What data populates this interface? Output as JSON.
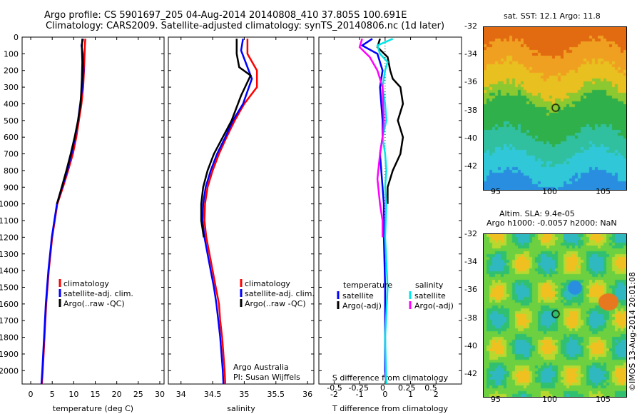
{
  "title": {
    "line1": "Argo profile: CS 5901697_205 04-Aug-2014 20140808_410 37.805S 100.691E",
    "line2": "Climatology: CARS2009. Satellite-adjusted climatology: synTS_20140806.nc (1d later)"
  },
  "colors": {
    "climatology": "#ff0000",
    "satellite": "#0000ff",
    "argo": "#000000",
    "sat_salinity": "#00e5e5",
    "argo_salinity": "#ff00ff"
  },
  "depth_axis": {
    "ticks": [
      0,
      100,
      200,
      300,
      400,
      500,
      600,
      700,
      800,
      900,
      1000,
      1100,
      1200,
      1300,
      1400,
      1500,
      1600,
      1700,
      1800,
      1900,
      2000
    ]
  },
  "chart_data": [
    {
      "type": "line",
      "xlabel": "temperature (deg C)",
      "ylabel": "",
      "xlim": [
        -2,
        31
      ],
      "ylim": [
        2080,
        0
      ],
      "xticks": [
        "0",
        "5",
        "10",
        "15",
        "20",
        "25",
        "30"
      ],
      "xtick_values": [
        0,
        5,
        10,
        15,
        20,
        25,
        30
      ],
      "legend": [
        "climatology",
        "satellite-adj. clim.",
        "Argo(..raw -QC)"
      ],
      "series": [
        {
          "name": "climatology",
          "color": "#ff0000",
          "points": [
            [
              12.7,
              10
            ],
            [
              12.6,
              50
            ],
            [
              12.5,
              120
            ],
            [
              12.4,
              200
            ],
            [
              12.2,
              300
            ],
            [
              11.8,
              400
            ],
            [
              11.2,
              500
            ],
            [
              10.6,
              600
            ],
            [
              9.8,
              700
            ],
            [
              8.7,
              800
            ],
            [
              7.5,
              900
            ],
            [
              6.2,
              1000
            ],
            [
              5.6,
              1100
            ],
            [
              5.0,
              1200
            ],
            [
              4.6,
              1300
            ],
            [
              4.2,
              1400
            ],
            [
              3.9,
              1500
            ],
            [
              3.6,
              1600
            ],
            [
              3.4,
              1700
            ],
            [
              3.2,
              1800
            ],
            [
              3.0,
              1900
            ],
            [
              2.8,
              2000
            ],
            [
              2.6,
              2080
            ]
          ]
        },
        {
          "name": "satellite-adj. clim.",
          "color": "#0000ff",
          "points": [
            [
              12.2,
              10
            ],
            [
              11.8,
              50
            ],
            [
              12.1,
              100
            ],
            [
              12.3,
              200
            ],
            [
              12.0,
              300
            ],
            [
              11.5,
              400
            ],
            [
              11.0,
              500
            ],
            [
              10.3,
              600
            ],
            [
              9.5,
              700
            ],
            [
              8.5,
              800
            ],
            [
              7.3,
              900
            ],
            [
              6.1,
              1000
            ],
            [
              5.5,
              1100
            ],
            [
              4.9,
              1200
            ],
            [
              4.5,
              1300
            ],
            [
              4.1,
              1400
            ],
            [
              3.8,
              1500
            ],
            [
              3.5,
              1600
            ],
            [
              3.3,
              1700
            ],
            [
              3.1,
              1800
            ],
            [
              2.9,
              1900
            ],
            [
              2.7,
              2000
            ],
            [
              2.5,
              2080
            ]
          ]
        },
        {
          "name": "Argo(..raw -QC)",
          "color": "#000000",
          "points": [
            [
              12.0,
              10
            ],
            [
              11.9,
              60
            ],
            [
              12.0,
              150
            ],
            [
              11.9,
              250
            ],
            [
              11.6,
              400
            ],
            [
              11.0,
              500
            ],
            [
              10.2,
              600
            ],
            [
              9.3,
              700
            ],
            [
              8.3,
              800
            ],
            [
              7.2,
              900
            ],
            [
              6.1,
              1000
            ]
          ]
        }
      ]
    },
    {
      "type": "line",
      "xlabel": "salinity",
      "ylabel": "",
      "xlim": [
        33.8,
        36.1
      ],
      "ylim": [
        2080,
        0
      ],
      "xticks": [
        "34",
        "34.5",
        "35",
        "35.5",
        "36"
      ],
      "xtick_values": [
        34,
        34.5,
        35,
        35.5,
        36
      ],
      "legend": [
        "climatology",
        "satellite-adj. clim.",
        "Argo(..raw -QC)"
      ],
      "annotation": [
        "Argo Australia",
        "PI: Susan Wijffels"
      ],
      "series": [
        {
          "name": "climatology",
          "color": "#ff0000",
          "points": [
            [
              35.05,
              10
            ],
            [
              35.05,
              100
            ],
            [
              35.2,
              200
            ],
            [
              35.2,
              300
            ],
            [
              35.0,
              400
            ],
            [
              34.85,
              500
            ],
            [
              34.72,
              600
            ],
            [
              34.6,
              700
            ],
            [
              34.5,
              800
            ],
            [
              34.42,
              900
            ],
            [
              34.38,
              1000
            ],
            [
              34.37,
              1100
            ],
            [
              34.4,
              1200
            ],
            [
              34.45,
              1300
            ],
            [
              34.5,
              1400
            ],
            [
              34.55,
              1500
            ],
            [
              34.6,
              1600
            ],
            [
              34.62,
              1700
            ],
            [
              34.65,
              1800
            ],
            [
              34.67,
              1900
            ],
            [
              34.69,
              2000
            ],
            [
              34.7,
              2080
            ]
          ]
        },
        {
          "name": "satellite-adj. clim.",
          "color": "#0000ff",
          "points": [
            [
              34.98,
              10
            ],
            [
              34.95,
              80
            ],
            [
              35.05,
              180
            ],
            [
              35.12,
              250
            ],
            [
              34.98,
              400
            ],
            [
              34.82,
              500
            ],
            [
              34.7,
              600
            ],
            [
              34.57,
              700
            ],
            [
              34.47,
              800
            ],
            [
              34.39,
              900
            ],
            [
              34.35,
              1000
            ],
            [
              34.34,
              1100
            ],
            [
              34.37,
              1200
            ],
            [
              34.42,
              1300
            ],
            [
              34.47,
              1400
            ],
            [
              34.52,
              1500
            ],
            [
              34.56,
              1600
            ],
            [
              34.59,
              1700
            ],
            [
              34.62,
              1800
            ],
            [
              34.64,
              1900
            ],
            [
              34.66,
              2000
            ],
            [
              34.67,
              2080
            ]
          ]
        },
        {
          "name": "Argo(..raw -QC)",
          "color": "#000000",
          "points": [
            [
              34.88,
              10
            ],
            [
              34.88,
              100
            ],
            [
              34.92,
              180
            ],
            [
              35.1,
              230
            ],
            [
              34.95,
              350
            ],
            [
              34.8,
              500
            ],
            [
              34.66,
              600
            ],
            [
              34.52,
              700
            ],
            [
              34.42,
              800
            ],
            [
              34.35,
              900
            ],
            [
              34.32,
              1000
            ],
            [
              34.32,
              1100
            ],
            [
              34.36,
              1200
            ]
          ]
        }
      ]
    },
    {
      "type": "line",
      "xlabel": "T difference from climatology",
      "xlabel_top": "S difference from climatology",
      "ylabel": "",
      "xlim": [
        -2.6,
        3.0
      ],
      "ylim": [
        2080,
        0
      ],
      "xticks": [
        "-2",
        "-1",
        "0",
        "1",
        "2"
      ],
      "xtick_values": [
        -2,
        -1,
        0,
        1,
        2
      ],
      "xticks_top": [
        "-0.5",
        "-0.25",
        "0",
        "0.25",
        "0.5"
      ],
      "xticks_top_values": [
        -0.5,
        -0.25,
        0,
        0.25,
        0.5
      ],
      "legend_titles": [
        "temperature",
        "salinity"
      ],
      "legend": [
        "satellite",
        "Argo(-adj)",
        "satellite",
        "Argo(-adj)"
      ],
      "series": [
        {
          "name": "satellite",
          "color": "#0000ff",
          "points": [
            [
              -0.5,
              10
            ],
            [
              -0.9,
              50
            ],
            [
              -0.3,
              100
            ],
            [
              -0.1,
              200
            ],
            [
              -0.2,
              300
            ],
            [
              -0.15,
              400
            ],
            [
              -0.1,
              500
            ],
            [
              -0.1,
              600
            ],
            [
              -0.2,
              700
            ],
            [
              -0.15,
              800
            ],
            [
              -0.1,
              900
            ],
            [
              -0.05,
              1000
            ],
            [
              -0.05,
              1200
            ],
            [
              0,
              1500
            ],
            [
              0,
              2000
            ],
            [
              0.05,
              2080
            ]
          ]
        },
        {
          "name": "Argo(-adj)",
          "color": "#000000",
          "points": [
            [
              -0.2,
              10
            ],
            [
              -0.3,
              60
            ],
            [
              0.1,
              120
            ],
            [
              0.2,
              200
            ],
            [
              0.3,
              250
            ],
            [
              0.6,
              300
            ],
            [
              0.7,
              400
            ],
            [
              0.5,
              500
            ],
            [
              0.7,
              600
            ],
            [
              0.6,
              700
            ],
            [
              0.3,
              800
            ],
            [
              0.1,
              900
            ],
            [
              0.1,
              1000
            ]
          ]
        },
        {
          "name": "satellite",
          "color": "#00e5e5",
          "points": [
            [
              0.3,
              10
            ],
            [
              -0.3,
              50
            ],
            [
              -0.2,
              100
            ],
            [
              0.1,
              150
            ],
            [
              0,
              200
            ],
            [
              -0.1,
              300
            ],
            [
              0,
              400
            ],
            [
              0.05,
              500
            ],
            [
              -0.1,
              600
            ],
            [
              0,
              700
            ],
            [
              0.05,
              800
            ],
            [
              0,
              900
            ],
            [
              0.05,
              1000
            ],
            [
              0,
              1200
            ],
            [
              0.1,
              1500
            ],
            [
              0,
              1800
            ],
            [
              0.05,
              2080
            ]
          ]
        },
        {
          "name": "Argo(-adj)",
          "color": "#ff00ff",
          "points": [
            [
              -0.9,
              10
            ],
            [
              -1.0,
              60
            ],
            [
              -0.6,
              120
            ],
            [
              -0.3,
              200
            ],
            [
              -0.1,
              300
            ],
            [
              -0.05,
              500
            ],
            [
              -0.1,
              600
            ],
            [
              -0.2,
              700
            ],
            [
              -0.3,
              850
            ],
            [
              -0.2,
              1000
            ],
            [
              -0.1,
              1100
            ],
            [
              -0.1,
              1200
            ]
          ]
        }
      ]
    }
  ],
  "maps": [
    {
      "title": "sat. SST: 12.1  Argo: 11.8",
      "type": "sst",
      "yticks": [
        "-32",
        "-34",
        "-36",
        "-38",
        "-40",
        "-42"
      ],
      "xticks": [
        "95",
        "100",
        "105"
      ]
    },
    {
      "title": "Altim. SLA: 9.4e-05",
      "subtitle": "Argo h1000: -0.0057 h2000: NaN",
      "type": "sla",
      "yticks": [
        "-32",
        "-34",
        "-36",
        "-38",
        "-40",
        "-42"
      ],
      "xticks": [
        "95",
        "100",
        "105"
      ]
    }
  ],
  "side_label": "©IMOS 13-Aug-2014 20:01:08"
}
